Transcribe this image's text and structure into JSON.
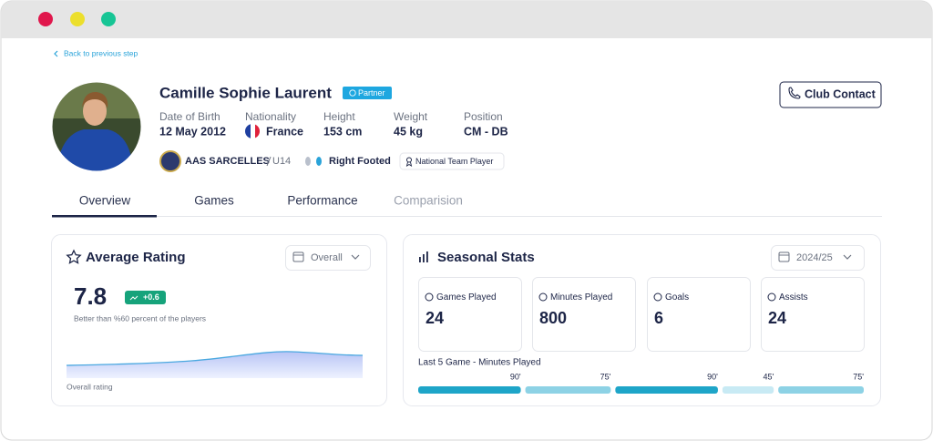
{
  "nav": {
    "back": "Back to previous step"
  },
  "profile": {
    "name": "Camille Sophie Laurent",
    "badge": "Partner",
    "fields": [
      {
        "label": "Date of Birth",
        "value": "12 May 2012"
      },
      {
        "label": "Nationality",
        "value": "France"
      },
      {
        "label": "Height",
        "value": "153 cm"
      },
      {
        "label": "Weight",
        "value": "45 kg"
      },
      {
        "label": "Position",
        "value": "CM - DB"
      }
    ],
    "club": "AAS SARCELLES",
    "team": "U14",
    "foot": "Right Footed",
    "tag": "National Team Player",
    "contact": "Club Contact"
  },
  "tabs": [
    "Overview",
    "Games",
    "Performance",
    "Comparision"
  ],
  "rating": {
    "title": "Average Rating",
    "filter": "Overall",
    "value": 7.8,
    "change": "+0.6",
    "note": "Better than %60 percent of the players",
    "chart_label": "Overall rating"
  },
  "seasonal": {
    "title": "Seasonal Stats",
    "season": "2024/25",
    "stats": [
      {
        "label": "Games Played",
        "value": 24
      },
      {
        "label": "Minutes Played",
        "value": 800
      },
      {
        "label": "Goals",
        "value": 6
      },
      {
        "label": "Assists",
        "value": 24
      }
    ],
    "minutes": {
      "title": "Last 5 Game - Minutes Played",
      "values": [
        90,
        75,
        90,
        45,
        75
      ],
      "value_labels": [
        "90'",
        "75'",
        "90'",
        "45'",
        "75'"
      ],
      "colors": [
        "#1ea5c8",
        "#8dd2e5",
        "#1ea5c8",
        "#c8eaf4",
        "#8dd2e5"
      ]
    }
  }
}
